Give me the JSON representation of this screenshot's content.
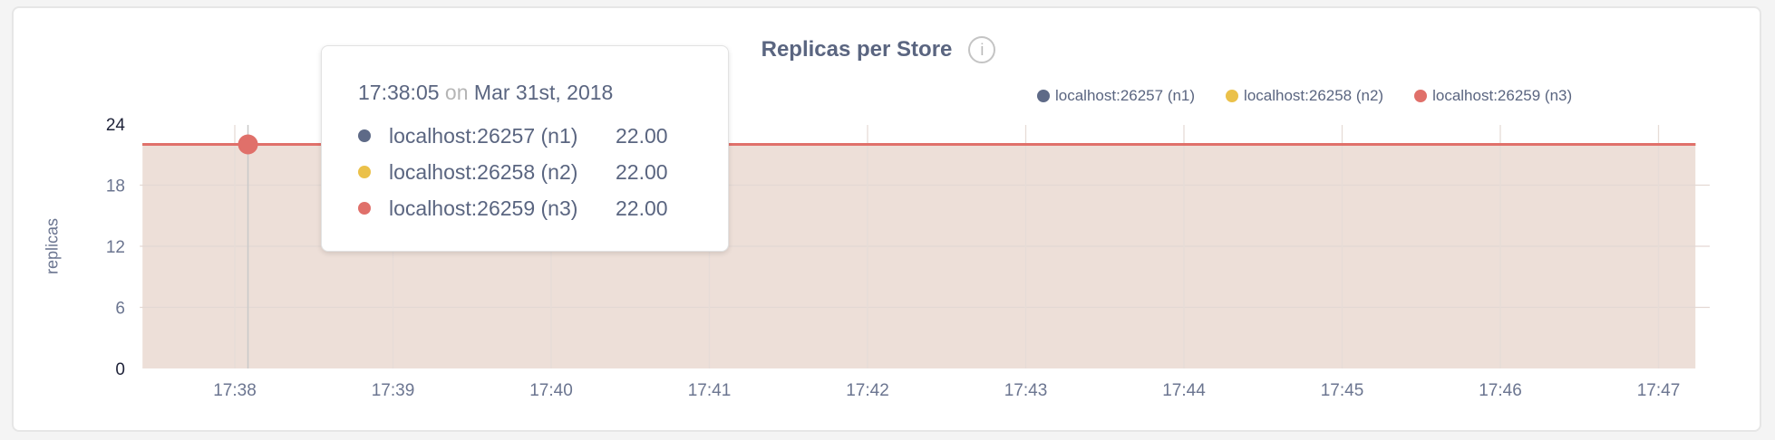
{
  "chart_data": {
    "type": "area",
    "title": "Replicas per Store",
    "ylabel": "replicas",
    "xlabel": "",
    "ylim": [
      0,
      24
    ],
    "yticks": [
      "0",
      "6",
      "12",
      "18",
      "24"
    ],
    "xlim": [
      "17:37:25",
      "17:47:14"
    ],
    "xticks": [
      "17:38",
      "17:39",
      "17:40",
      "17:41",
      "17:42",
      "17:43",
      "17:44",
      "17:45",
      "17:46",
      "17:47"
    ],
    "grid": true,
    "legend_position": "top-right",
    "series": [
      {
        "name": "localhost:26257 (n1)",
        "color": "#5e6a87",
        "x": [
          "17:37:25",
          "17:47:14"
        ],
        "values": [
          22,
          22
        ]
      },
      {
        "name": "localhost:26258 (n2)",
        "color": "#ebc14a",
        "x": [
          "17:37:25",
          "17:47:14"
        ],
        "values": [
          22,
          22
        ]
      },
      {
        "name": "localhost:26259 (n3)",
        "color": "#e0706a",
        "x": [
          "17:37:25",
          "17:47:14"
        ],
        "values": [
          22,
          22
        ]
      }
    ],
    "fill_color": "#eddfd8"
  },
  "info_icon": "info-circle-icon",
  "tooltip": {
    "time": "17:38:05",
    "on": "on",
    "date": "Mar 31st, 2018",
    "rows": [
      {
        "name": "localhost:26257 (n1)",
        "value": "22.00"
      },
      {
        "name": "localhost:26258 (n2)",
        "value": "22.00"
      },
      {
        "name": "localhost:26259 (n3)",
        "value": "22.00"
      }
    ]
  }
}
